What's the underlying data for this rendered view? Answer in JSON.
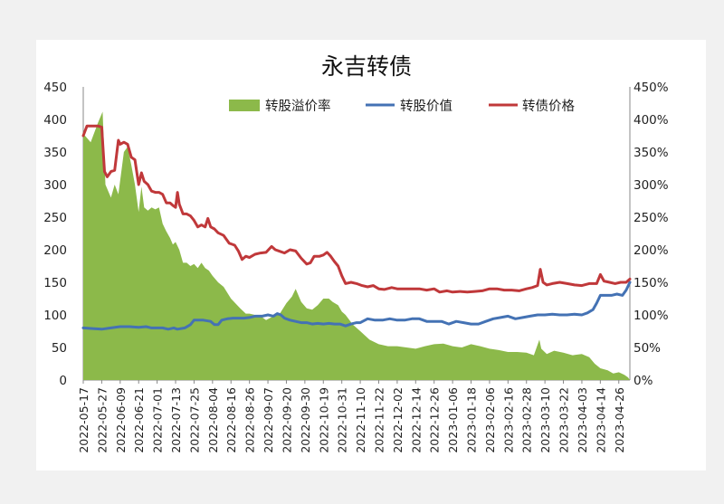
{
  "chart_data": {
    "type": "line",
    "title": "永吉转债",
    "y_left": {
      "min": 0,
      "max": 450,
      "ticks": [
        "0",
        "50",
        "100",
        "150",
        "200",
        "250",
        "300",
        "350",
        "400",
        "450"
      ]
    },
    "y_right": {
      "min": 0,
      "max": 450,
      "ticks": [
        "0%",
        "50%",
        "100%",
        "150%",
        "200%",
        "250%",
        "300%",
        "350%",
        "400%",
        "450%"
      ]
    },
    "x_ticks": [
      "2022-05-17",
      "2022-05-27",
      "2022-06-09",
      "2022-06-21",
      "2022-07-01",
      "2022-07-13",
      "2022-07-25",
      "2022-08-04",
      "2022-08-16",
      "2022-08-26",
      "2022-09-07",
      "2022-09-20",
      "2022-09-30",
      "2022-10-19",
      "2022-10-31",
      "2022-11-10",
      "2022-11-22",
      "2022-12-02",
      "2022-12-14",
      "2022-12-26",
      "2023-01-06",
      "2023-01-18",
      "2023-02-06",
      "2023-02-16",
      "2023-02-28",
      "2023-03-10",
      "2023-03-22",
      "2023-04-03",
      "2023-04-14",
      "2023-04-26"
    ],
    "x_span": [
      0,
      29.6
    ],
    "legend": {
      "position": "top",
      "entries": [
        "转股溢价率",
        "转股价值",
        "转债价格"
      ]
    },
    "colors": {
      "premium": "#8cb94a",
      "conv_value": "#4472b4",
      "bond_price": "#c0383a"
    },
    "series": [
      {
        "name": "转股溢价率",
        "kind": "area",
        "axis": "right",
        "points": [
          [
            0,
            378
          ],
          [
            0.4,
            365
          ],
          [
            0.8,
            395
          ],
          [
            1.05,
            412
          ],
          [
            1.2,
            300
          ],
          [
            1.5,
            280
          ],
          [
            1.7,
            300
          ],
          [
            1.9,
            285
          ],
          [
            2.2,
            350
          ],
          [
            2.4,
            358
          ],
          [
            2.6,
            330
          ],
          [
            2.8,
            300
          ],
          [
            3.0,
            258
          ],
          [
            3.15,
            297
          ],
          [
            3.3,
            265
          ],
          [
            3.5,
            260
          ],
          [
            3.7,
            265
          ],
          [
            3.9,
            262
          ],
          [
            4.1,
            265
          ],
          [
            4.3,
            240
          ],
          [
            4.5,
            228
          ],
          [
            4.7,
            218
          ],
          [
            4.85,
            208
          ],
          [
            5.0,
            212
          ],
          [
            5.2,
            200
          ],
          [
            5.4,
            180
          ],
          [
            5.6,
            180
          ],
          [
            5.8,
            175
          ],
          [
            6.0,
            178
          ],
          [
            6.2,
            172
          ],
          [
            6.4,
            180
          ],
          [
            6.6,
            172
          ],
          [
            6.8,
            168
          ],
          [
            7.0,
            160
          ],
          [
            7.3,
            150
          ],
          [
            7.6,
            143
          ],
          [
            8.0,
            125
          ],
          [
            8.5,
            110
          ],
          [
            8.8,
            102
          ],
          [
            9.0,
            102
          ],
          [
            9.3,
            100
          ],
          [
            9.6,
            98
          ],
          [
            9.9,
            92
          ],
          [
            10.3,
            98
          ],
          [
            10.6,
            100
          ],
          [
            11.0,
            118
          ],
          [
            11.3,
            128
          ],
          [
            11.5,
            140
          ],
          [
            11.8,
            120
          ],
          [
            12.1,
            110
          ],
          [
            12.4,
            108
          ],
          [
            12.7,
            115
          ],
          [
            13.0,
            125
          ],
          [
            13.3,
            125
          ],
          [
            13.5,
            120
          ],
          [
            13.8,
            115
          ],
          [
            14.0,
            105
          ],
          [
            14.2,
            100
          ],
          [
            14.6,
            85
          ],
          [
            15.0,
            75
          ],
          [
            15.5,
            62
          ],
          [
            16.0,
            55
          ],
          [
            16.5,
            52
          ],
          [
            17.0,
            52
          ],
          [
            17.5,
            50
          ],
          [
            18.0,
            48
          ],
          [
            18.5,
            52
          ],
          [
            19.0,
            55
          ],
          [
            19.5,
            56
          ],
          [
            20.0,
            52
          ],
          [
            20.5,
            50
          ],
          [
            21.0,
            55
          ],
          [
            21.5,
            52
          ],
          [
            22.0,
            48
          ],
          [
            22.5,
            46
          ],
          [
            23.0,
            43
          ],
          [
            23.5,
            43
          ],
          [
            24.0,
            42
          ],
          [
            24.4,
            38
          ],
          [
            24.7,
            62
          ],
          [
            24.8,
            48
          ],
          [
            25.1,
            40
          ],
          [
            25.5,
            45
          ],
          [
            26.0,
            42
          ],
          [
            26.5,
            38
          ],
          [
            27.0,
            40
          ],
          [
            27.4,
            35
          ],
          [
            27.7,
            25
          ],
          [
            28.0,
            18
          ],
          [
            28.4,
            15
          ],
          [
            28.7,
            10
          ],
          [
            29.0,
            12
          ],
          [
            29.3,
            8
          ],
          [
            29.5,
            4
          ],
          [
            29.6,
            0
          ]
        ]
      },
      {
        "name": "转股价值",
        "kind": "line",
        "axis": "left",
        "points": [
          [
            0,
            80
          ],
          [
            0.5,
            79
          ],
          [
            1.0,
            78
          ],
          [
            1.5,
            80
          ],
          [
            2.0,
            82
          ],
          [
            2.5,
            82
          ],
          [
            3.0,
            81
          ],
          [
            3.4,
            82
          ],
          [
            3.7,
            80
          ],
          [
            4.0,
            80
          ],
          [
            4.3,
            80
          ],
          [
            4.6,
            78
          ],
          [
            4.9,
            80
          ],
          [
            5.1,
            78
          ],
          [
            5.5,
            80
          ],
          [
            5.8,
            85
          ],
          [
            6.0,
            92
          ],
          [
            6.2,
            92
          ],
          [
            6.5,
            92
          ],
          [
            6.9,
            90
          ],
          [
            7.1,
            85
          ],
          [
            7.3,
            85
          ],
          [
            7.5,
            92
          ],
          [
            7.8,
            94
          ],
          [
            8.1,
            95
          ],
          [
            8.4,
            95
          ],
          [
            8.7,
            95
          ],
          [
            9.0,
            96
          ],
          [
            9.3,
            98
          ],
          [
            9.7,
            98
          ],
          [
            10.0,
            100
          ],
          [
            10.3,
            98
          ],
          [
            10.5,
            102
          ],
          [
            10.7,
            100
          ],
          [
            10.9,
            95
          ],
          [
            11.2,
            92
          ],
          [
            11.5,
            90
          ],
          [
            11.8,
            88
          ],
          [
            12.1,
            88
          ],
          [
            12.4,
            86
          ],
          [
            12.7,
            87
          ],
          [
            13.0,
            86
          ],
          [
            13.3,
            87
          ],
          [
            13.6,
            86
          ],
          [
            13.9,
            86
          ],
          [
            14.2,
            83
          ],
          [
            14.5,
            86
          ],
          [
            14.8,
            88
          ],
          [
            15.0,
            88
          ],
          [
            15.4,
            94
          ],
          [
            15.8,
            92
          ],
          [
            16.2,
            92
          ],
          [
            16.6,
            94
          ],
          [
            17.0,
            92
          ],
          [
            17.4,
            92
          ],
          [
            17.8,
            94
          ],
          [
            18.2,
            94
          ],
          [
            18.6,
            90
          ],
          [
            19.0,
            90
          ],
          [
            19.4,
            90
          ],
          [
            19.8,
            86
          ],
          [
            20.2,
            90
          ],
          [
            20.6,
            88
          ],
          [
            21.0,
            86
          ],
          [
            21.4,
            86
          ],
          [
            21.8,
            90
          ],
          [
            22.2,
            94
          ],
          [
            22.6,
            96
          ],
          [
            23.0,
            98
          ],
          [
            23.4,
            94
          ],
          [
            23.8,
            96
          ],
          [
            24.2,
            98
          ],
          [
            24.6,
            100
          ],
          [
            25.0,
            100
          ],
          [
            25.4,
            101
          ],
          [
            25.8,
            100
          ],
          [
            26.2,
            100
          ],
          [
            26.6,
            101
          ],
          [
            27.0,
            100
          ],
          [
            27.3,
            103
          ],
          [
            27.6,
            108
          ],
          [
            27.8,
            118
          ],
          [
            28.0,
            130
          ],
          [
            28.3,
            130
          ],
          [
            28.6,
            130
          ],
          [
            28.9,
            132
          ],
          [
            29.2,
            130
          ],
          [
            29.4,
            138
          ],
          [
            29.6,
            150
          ]
        ]
      },
      {
        "name": "转债价格",
        "kind": "line",
        "axis": "left",
        "points": [
          [
            0,
            375
          ],
          [
            0.2,
            390
          ],
          [
            0.5,
            390
          ],
          [
            0.8,
            390
          ],
          [
            1.0,
            388
          ],
          [
            1.15,
            320
          ],
          [
            1.3,
            312
          ],
          [
            1.5,
            320
          ],
          [
            1.7,
            322
          ],
          [
            1.9,
            368
          ],
          [
            2.0,
            362
          ],
          [
            2.2,
            365
          ],
          [
            2.4,
            362
          ],
          [
            2.6,
            342
          ],
          [
            2.8,
            338
          ],
          [
            3.0,
            300
          ],
          [
            3.15,
            318
          ],
          [
            3.3,
            305
          ],
          [
            3.5,
            300
          ],
          [
            3.7,
            290
          ],
          [
            3.9,
            288
          ],
          [
            4.1,
            288
          ],
          [
            4.3,
            285
          ],
          [
            4.5,
            272
          ],
          [
            4.7,
            272
          ],
          [
            4.85,
            268
          ],
          [
            5.0,
            265
          ],
          [
            5.1,
            288
          ],
          [
            5.2,
            270
          ],
          [
            5.4,
            255
          ],
          [
            5.6,
            255
          ],
          [
            5.8,
            252
          ],
          [
            6.0,
            245
          ],
          [
            6.2,
            235
          ],
          [
            6.4,
            238
          ],
          [
            6.6,
            235
          ],
          [
            6.75,
            248
          ],
          [
            6.9,
            235
          ],
          [
            7.1,
            232
          ],
          [
            7.3,
            226
          ],
          [
            7.6,
            222
          ],
          [
            7.9,
            210
          ],
          [
            8.2,
            207
          ],
          [
            8.4,
            198
          ],
          [
            8.6,
            185
          ],
          [
            8.8,
            190
          ],
          [
            9.0,
            188
          ],
          [
            9.3,
            193
          ],
          [
            9.6,
            195
          ],
          [
            9.9,
            196
          ],
          [
            10.2,
            205
          ],
          [
            10.4,
            200
          ],
          [
            10.6,
            198
          ],
          [
            10.9,
            195
          ],
          [
            11.2,
            200
          ],
          [
            11.5,
            198
          ],
          [
            11.8,
            187
          ],
          [
            12.1,
            178
          ],
          [
            12.3,
            180
          ],
          [
            12.5,
            190
          ],
          [
            12.8,
            190
          ],
          [
            13.0,
            192
          ],
          [
            13.2,
            196
          ],
          [
            13.4,
            190
          ],
          [
            13.6,
            182
          ],
          [
            13.8,
            175
          ],
          [
            14.0,
            160
          ],
          [
            14.2,
            148
          ],
          [
            14.5,
            150
          ],
          [
            14.8,
            148
          ],
          [
            15.1,
            145
          ],
          [
            15.4,
            143
          ],
          [
            15.7,
            145
          ],
          [
            16.0,
            140
          ],
          [
            16.3,
            139
          ],
          [
            16.7,
            142
          ],
          [
            17.0,
            140
          ],
          [
            17.4,
            140
          ],
          [
            17.8,
            140
          ],
          [
            18.2,
            140
          ],
          [
            18.6,
            138
          ],
          [
            19.0,
            140
          ],
          [
            19.3,
            135
          ],
          [
            19.7,
            137
          ],
          [
            20.0,
            135
          ],
          [
            20.4,
            136
          ],
          [
            20.8,
            135
          ],
          [
            21.2,
            136
          ],
          [
            21.6,
            137
          ],
          [
            22.0,
            140
          ],
          [
            22.4,
            140
          ],
          [
            22.8,
            138
          ],
          [
            23.2,
            138
          ],
          [
            23.6,
            137
          ],
          [
            24.0,
            140
          ],
          [
            24.3,
            142
          ],
          [
            24.6,
            145
          ],
          [
            24.75,
            170
          ],
          [
            24.9,
            150
          ],
          [
            25.1,
            146
          ],
          [
            25.4,
            148
          ],
          [
            25.8,
            150
          ],
          [
            26.2,
            148
          ],
          [
            26.6,
            146
          ],
          [
            27.0,
            145
          ],
          [
            27.4,
            148
          ],
          [
            27.8,
            148
          ],
          [
            28.0,
            162
          ],
          [
            28.2,
            152
          ],
          [
            28.5,
            150
          ],
          [
            28.8,
            148
          ],
          [
            29.1,
            150
          ],
          [
            29.4,
            150
          ],
          [
            29.6,
            155
          ]
        ]
      }
    ]
  }
}
